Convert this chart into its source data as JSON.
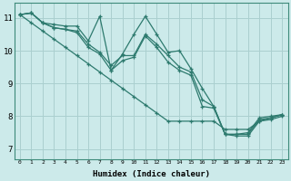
{
  "xlabel": "Humidex (Indice chaleur)",
  "bg_color": "#cceaea",
  "line_color": "#2d7a6e",
  "grid_color": "#aacfcf",
  "xlim": [
    -0.5,
    23.5
  ],
  "ylim": [
    6.7,
    11.45
  ],
  "xticks": [
    0,
    1,
    2,
    3,
    4,
    5,
    6,
    7,
    8,
    9,
    10,
    11,
    12,
    13,
    14,
    15,
    16,
    17,
    18,
    19,
    20,
    21,
    22,
    23
  ],
  "yticks": [
    7,
    8,
    9,
    10,
    11
  ],
  "series": [
    [
      11.1,
      11.15,
      10.85,
      10.8,
      10.75,
      10.75,
      10.3,
      11.05,
      9.4,
      9.9,
      10.5,
      11.05,
      10.5,
      9.95,
      10.0,
      9.45,
      8.85,
      8.3,
      7.45,
      7.45,
      7.5,
      7.95,
      8.0,
      8.05
    ],
    [
      11.1,
      11.15,
      10.85,
      10.7,
      10.65,
      10.6,
      10.2,
      9.95,
      9.55,
      9.85,
      9.85,
      10.5,
      10.2,
      9.85,
      9.5,
      9.35,
      8.5,
      8.3,
      7.45,
      7.45,
      7.45,
      7.9,
      7.95,
      8.05
    ],
    [
      11.1,
      11.15,
      10.85,
      10.7,
      10.65,
      10.55,
      10.1,
      9.9,
      9.4,
      9.7,
      9.8,
      10.45,
      10.1,
      9.65,
      9.4,
      9.25,
      8.3,
      8.25,
      7.45,
      7.4,
      7.4,
      7.85,
      7.9,
      8.0
    ],
    [
      11.1,
      10.85,
      10.6,
      10.35,
      10.1,
      9.85,
      9.6,
      9.35,
      9.1,
      8.85,
      8.6,
      8.35,
      8.1,
      7.85,
      7.85,
      7.85,
      7.85,
      7.85,
      7.6,
      7.6,
      7.6,
      7.85,
      7.95,
      8.05
    ]
  ]
}
